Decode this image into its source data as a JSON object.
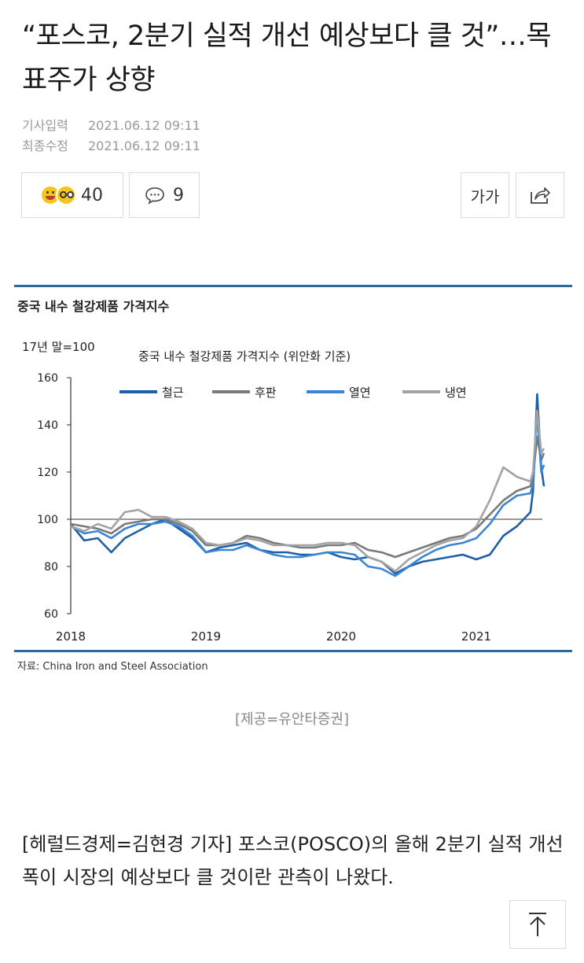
{
  "article": {
    "headline": "“포스코, 2분기 실적 개선 예상보다 클 것”…목표주가 상향",
    "published_label": "기사입력",
    "published_at": "2021.06.12 09:11",
    "updated_label": "최종수정",
    "updated_at": "2021.06.12 09:11",
    "reactions_count": "40",
    "comments_count": "9",
    "font_size_label": "가가",
    "image_caption": "[제공=유안타증권]",
    "body_text": "[헤럴드경제=김현경 기자] 포스코(POSCO)의 올해 2분기 실적 개선 폭이 시장의 예상보다 클 것이란 관측이 나왔다."
  },
  "icons": {
    "reactions": "emoji-faces-icon",
    "comments": "speech-bubble-icon",
    "share": "share-icon",
    "scroll_top": "arrow-up-icon"
  },
  "chart_data": {
    "type": "line",
    "figure_title": "중국 내수 철강제품 가격지수",
    "title": "중국 내수 철강제품 가격지수 (위안화 기준)",
    "ylabel": "17년 말=100",
    "source": "자료: China Iron and Steel Association",
    "ylim": [
      60,
      160
    ],
    "yticks": [
      60,
      80,
      100,
      120,
      140,
      160
    ],
    "xticks": [
      "2018",
      "2019",
      "2020",
      "2021"
    ],
    "xlim": [
      2018.0,
      2021.55
    ],
    "reference_line": 100,
    "legend_position": "top",
    "x": [
      2018.0,
      2018.1,
      2018.2,
      2018.3,
      2018.4,
      2018.5,
      2018.6,
      2018.7,
      2018.8,
      2018.9,
      2019.0,
      2019.1,
      2019.2,
      2019.3,
      2019.4,
      2019.5,
      2019.6,
      2019.7,
      2019.8,
      2019.9,
      2020.0,
      2020.1,
      2020.2,
      2020.3,
      2020.4,
      2020.5,
      2020.6,
      2020.7,
      2020.8,
      2020.9,
      2021.0,
      2021.1,
      2021.2,
      2021.3,
      2021.4,
      2021.42,
      2021.45,
      2021.48,
      2021.5
    ],
    "series": [
      {
        "name": "철근",
        "color": "#1f5fa6",
        "values": [
          98,
          91,
          92,
          86,
          92,
          95,
          98,
          100,
          96,
          92,
          86,
          88,
          89,
          90,
          87,
          86,
          86,
          85,
          85,
          86,
          84,
          83,
          84,
          82,
          77,
          80,
          82,
          83,
          84,
          85,
          83,
          85,
          93,
          97,
          103,
          112,
          153,
          122,
          114
        ]
      },
      {
        "name": "후판",
        "color": "#7a7a7a",
        "values": [
          98,
          97,
          96,
          94,
          98,
          99,
          100,
          100,
          98,
          95,
          89,
          89,
          90,
          93,
          92,
          90,
          89,
          88,
          88,
          89,
          89,
          90,
          87,
          86,
          84,
          86,
          88,
          90,
          92,
          93,
          96,
          102,
          108,
          112,
          114,
          118,
          135,
          125,
          128
        ]
      },
      {
        "name": "열연",
        "color": "#3a86d4",
        "values": [
          97,
          94,
          95,
          92,
          96,
          98,
          98,
          99,
          97,
          93,
          86,
          87,
          87,
          89,
          87,
          85,
          84,
          84,
          85,
          86,
          86,
          85,
          80,
          79,
          76,
          80,
          84,
          87,
          89,
          90,
          92,
          98,
          106,
          110,
          111,
          115,
          145,
          120,
          123
        ]
      },
      {
        "name": "냉연",
        "color": "#a3a3a3",
        "values": [
          97,
          95,
          98,
          96,
          103,
          104,
          101,
          101,
          99,
          96,
          90,
          89,
          90,
          92,
          91,
          89,
          89,
          89,
          89,
          90,
          90,
          89,
          84,
          82,
          78,
          83,
          86,
          89,
          91,
          92,
          97,
          108,
          122,
          118,
          116,
          120,
          146,
          128,
          130
        ]
      }
    ]
  }
}
